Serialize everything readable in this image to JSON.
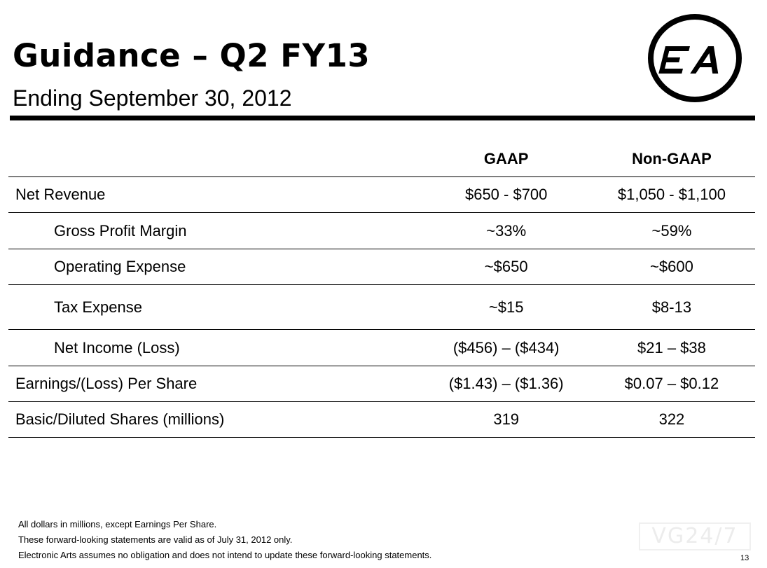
{
  "slide": {
    "title": "Guidance – Q2 FY13",
    "subtitle": "Ending September 30, 2012",
    "logo": {
      "icon": "ea-logo",
      "text": "EA"
    },
    "page_number": "13"
  },
  "table": {
    "headers": [
      "",
      "GAAP",
      "Non-GAAP"
    ],
    "rows": [
      {
        "label": "Net Revenue",
        "gaap": "$650 - $700",
        "non_gaap": "$1,050 - $1,100"
      },
      {
        "label": "Gross Profit Margin",
        "gaap": "~33%",
        "non_gaap": "~59%"
      },
      {
        "label": "Operating Expense",
        "gaap": "~$650",
        "non_gaap": "~$600"
      },
      {
        "label": "Tax Expense",
        "gaap": "~$15",
        "non_gaap": "$8-13"
      },
      {
        "label": "Net Income (Loss)",
        "gaap": "($456) – ($434)",
        "non_gaap": "$21 – $38"
      },
      {
        "label": "Earnings/(Loss) Per Share",
        "gaap": "($1.43) – ($1.36)",
        "non_gaap": "$0.07 – $0.12"
      },
      {
        "label": "Basic/Diluted Shares (millions)",
        "gaap": "319",
        "non_gaap": "322"
      }
    ]
  },
  "footnotes": [
    "All dollars in millions, except Earnings Per Share.",
    "These forward-looking statements are valid as of July 31, 2012 only.",
    "Electronic Arts assumes no obligation and does not intend to update these forward-looking statements."
  ],
  "watermark": "VG24/7"
}
